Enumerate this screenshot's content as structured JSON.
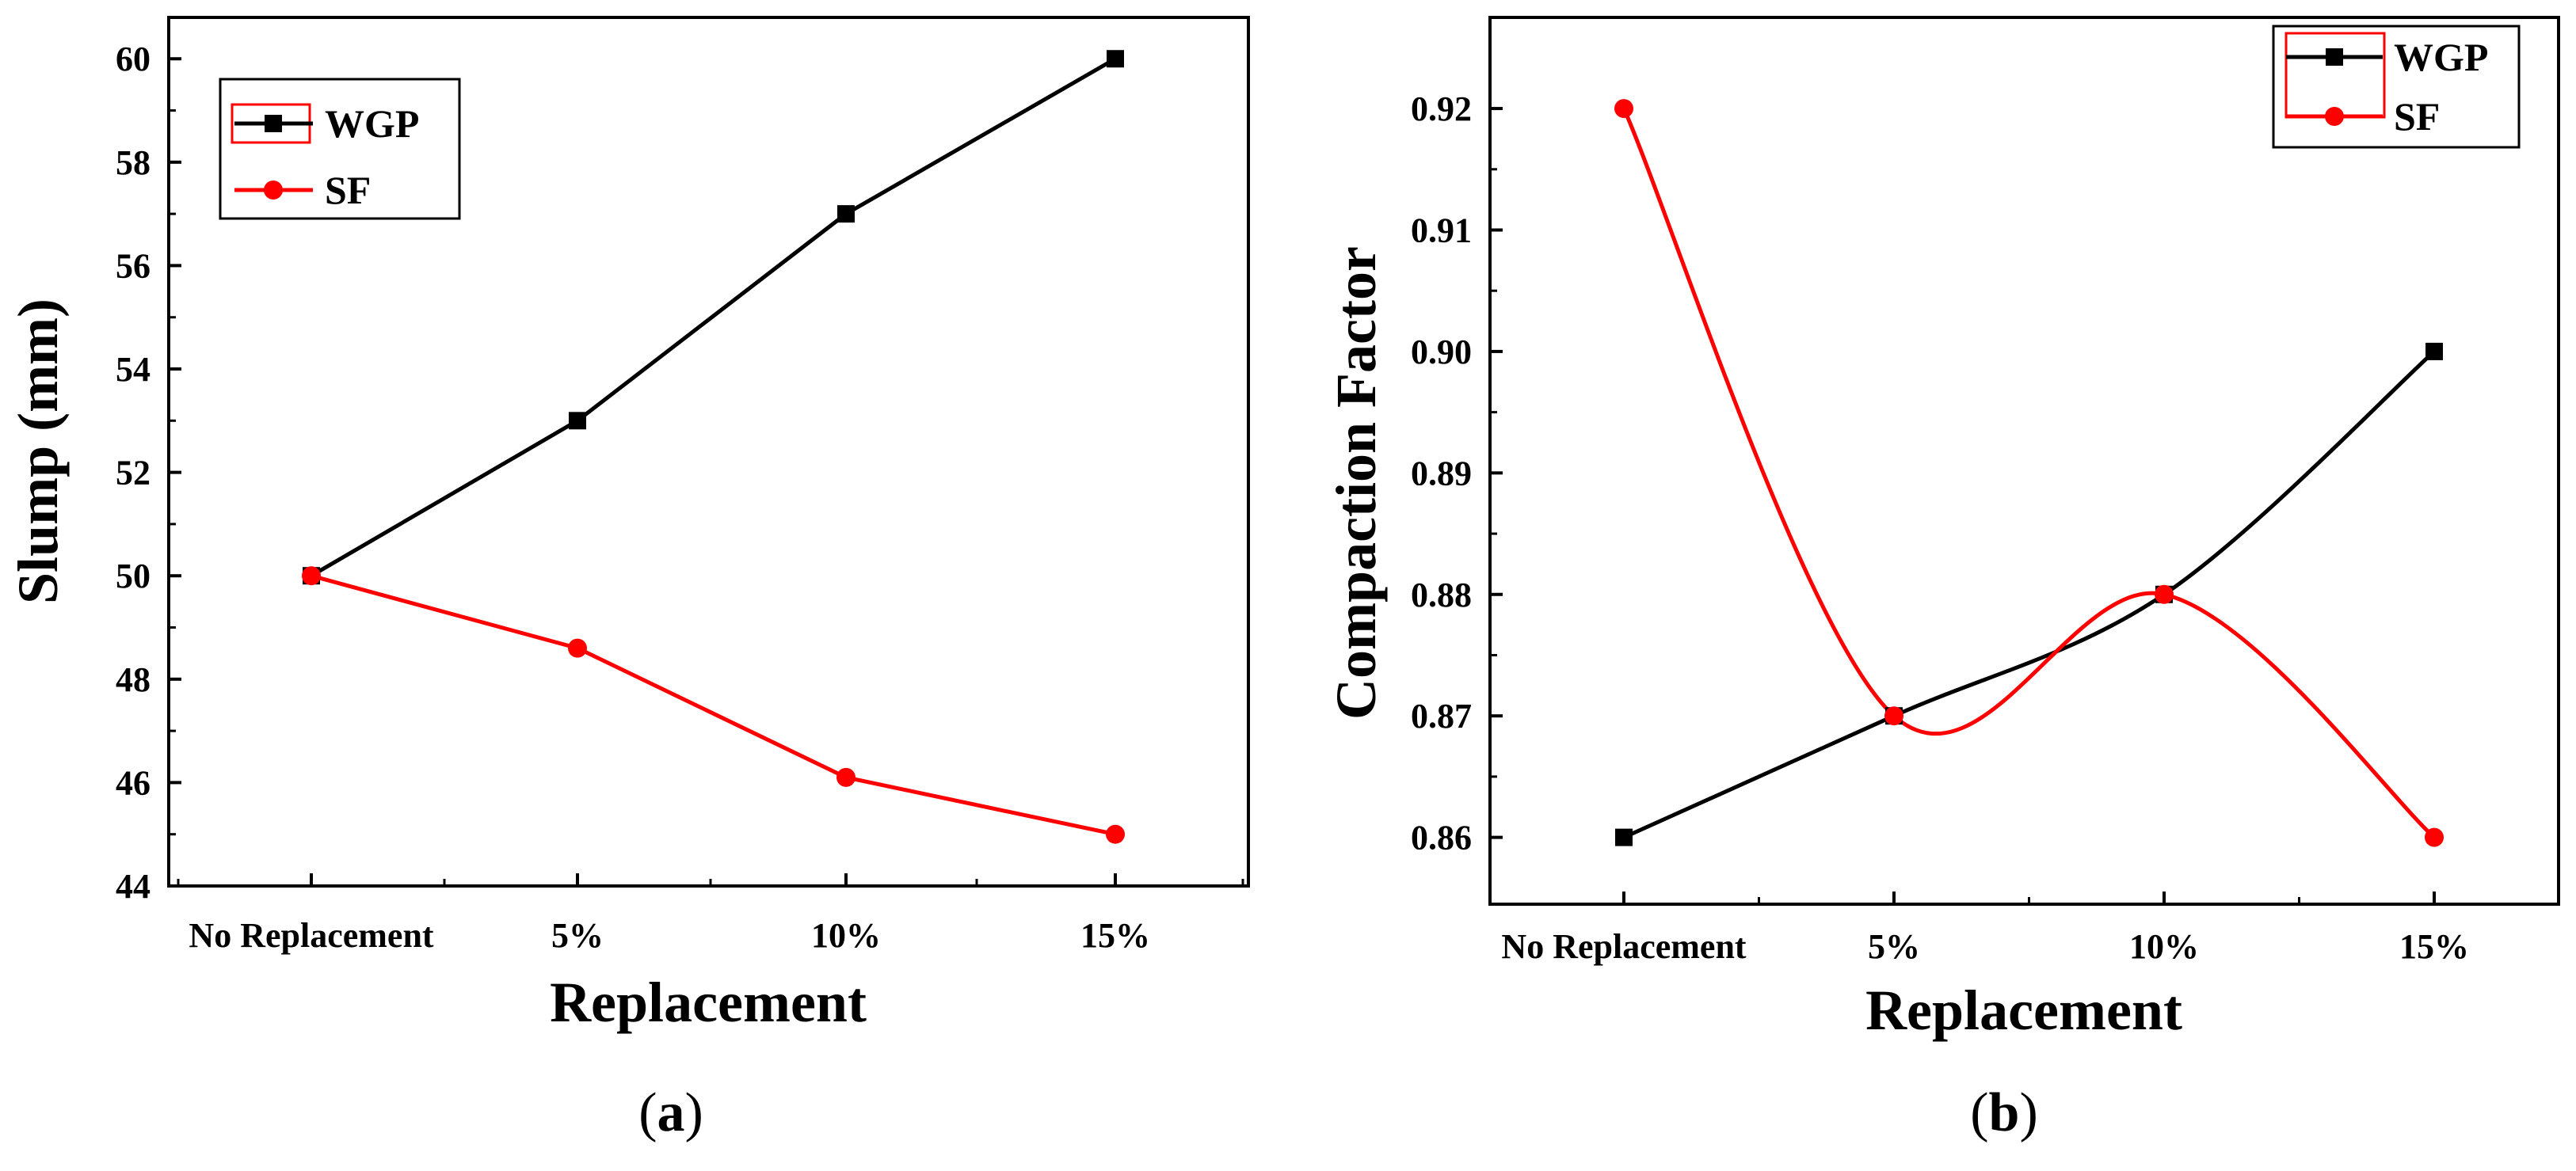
{
  "chart_data": [
    {
      "type": "line",
      "panel_label": "a",
      "title": "",
      "xlabel": "Replacement",
      "ylabel": "Slump (mm)",
      "categories": [
        "No Replacement",
        "5%",
        "10%",
        "15%"
      ],
      "ylim": [
        44,
        60.8
      ],
      "yticks": [
        44,
        46,
        48,
        50,
        52,
        54,
        56,
        58,
        60
      ],
      "ytick_labels": [
        "44",
        "46",
        "48",
        "50",
        "52",
        "54",
        "56",
        "58",
        "60"
      ],
      "legend_position": "top-left",
      "series": [
        {
          "name": "WGP",
          "color": "#000000",
          "marker": "square",
          "values": [
            50,
            53,
            57,
            60
          ]
        },
        {
          "name": "SF",
          "color": "#ff0000",
          "marker": "circle",
          "values": [
            50,
            48.6,
            46.1,
            45
          ]
        }
      ]
    },
    {
      "type": "line",
      "panel_label": "b",
      "title": "",
      "xlabel": "Replacement",
      "ylabel": "Compaction Factor",
      "categories": [
        "No Replacement",
        "5%",
        "10%",
        "15%"
      ],
      "ylim": [
        0.8545,
        0.9275
      ],
      "yticks": [
        0.86,
        0.87,
        0.88,
        0.89,
        0.9,
        0.91,
        0.92
      ],
      "ytick_labels": [
        "0.86",
        "0.87",
        "0.88",
        "0.89",
        "0.90",
        "0.91",
        "0.92"
      ],
      "legend_position": "top-right",
      "smooth": true,
      "series": [
        {
          "name": "WGP",
          "color": "#000000",
          "marker": "square",
          "values": [
            0.86,
            0.87,
            0.88,
            0.9
          ]
        },
        {
          "name": "SF",
          "color": "#ff0000",
          "marker": "circle",
          "values": [
            0.92,
            0.87,
            0.88,
            0.86
          ]
        }
      ]
    }
  ]
}
